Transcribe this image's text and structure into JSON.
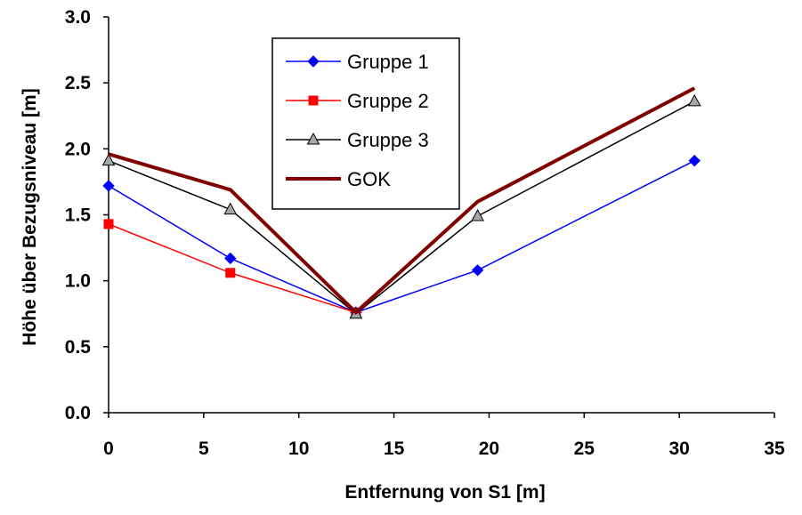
{
  "chart_data": {
    "type": "line",
    "xlabel": "Entfernung von S1 [m]",
    "ylabel": "Höhe über Bezugsniveau [m]",
    "xlim": [
      0,
      35
    ],
    "ylim": [
      0,
      3.0
    ],
    "x_ticks": [
      "0",
      "5",
      "10",
      "15",
      "20",
      "25",
      "30",
      "35"
    ],
    "y_ticks": [
      "0.0",
      "0.5",
      "1.0",
      "1.5",
      "2.0",
      "2.5",
      "3.0"
    ],
    "grid": false,
    "legend_position": "top-center",
    "series": [
      {
        "name": "Gruppe 1",
        "color": "#0000FF",
        "marker": "diamond",
        "points": [
          [
            0,
            1.72
          ],
          [
            6.4,
            1.17
          ],
          [
            13.0,
            0.76
          ],
          [
            19.4,
            1.08
          ],
          [
            30.8,
            1.91
          ]
        ]
      },
      {
        "name": "Gruppe 2",
        "color": "#FF0000",
        "marker": "square",
        "points": [
          [
            0,
            1.43
          ],
          [
            6.4,
            1.06
          ],
          [
            13.0,
            0.76
          ]
        ]
      },
      {
        "name": "Gruppe 3",
        "color": "#000000",
        "marker": "triangle",
        "marker_fill": "#A6A6A6",
        "points": [
          [
            0,
            1.91
          ],
          [
            6.4,
            1.54
          ],
          [
            13.0,
            0.75
          ],
          [
            19.4,
            1.49
          ],
          [
            30.8,
            2.36
          ]
        ]
      },
      {
        "name": "GOK",
        "color": "#800000",
        "marker": "none",
        "points": [
          [
            0,
            1.96
          ],
          [
            6.4,
            1.69
          ],
          [
            13.0,
            0.76
          ],
          [
            19.4,
            1.6
          ],
          [
            30.8,
            2.46
          ]
        ]
      }
    ]
  }
}
